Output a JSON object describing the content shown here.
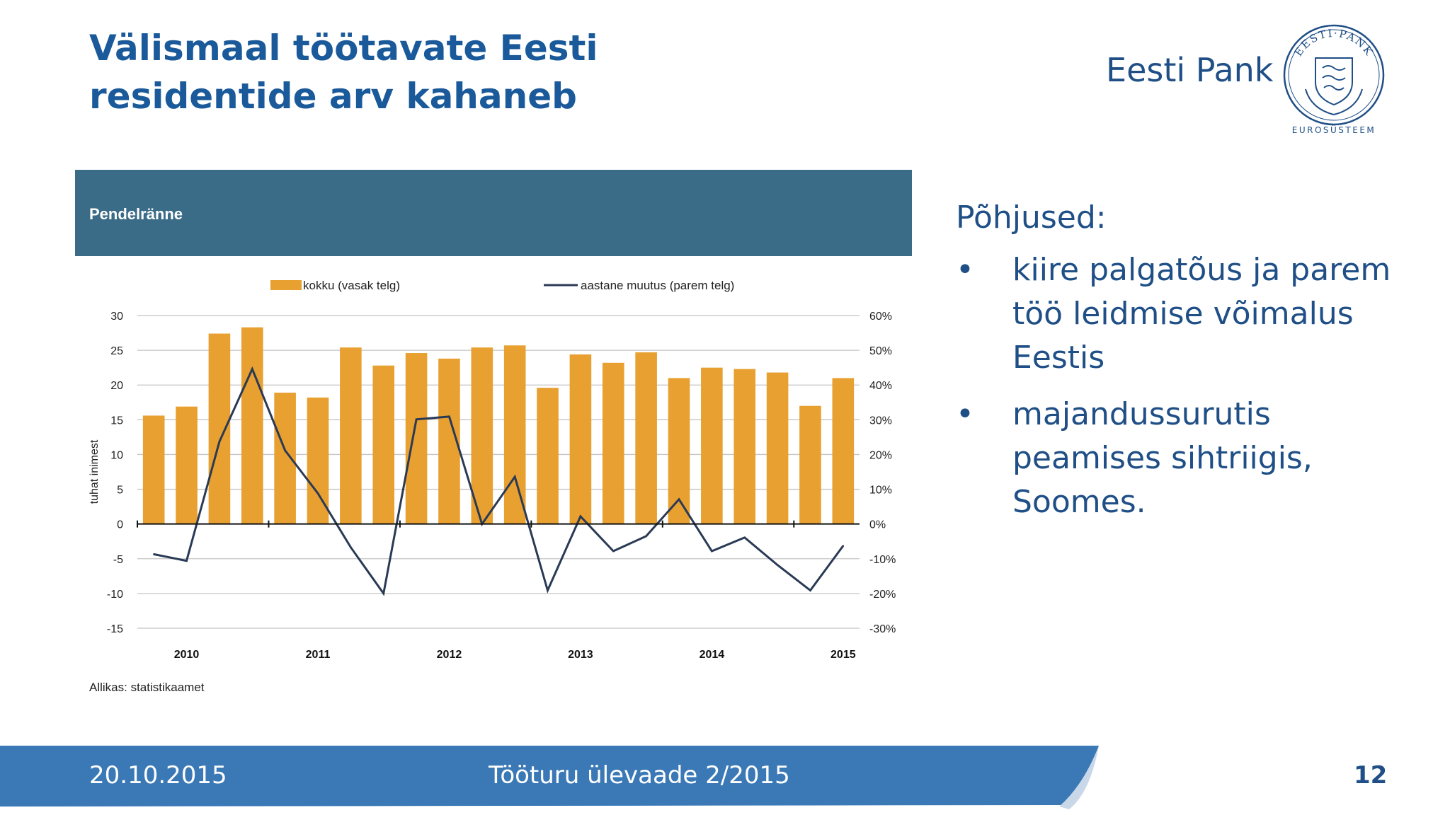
{
  "title": "Välismaal töötavate Eesti residentide arv kahaneb",
  "brand": {
    "name": "Eesti Pank",
    "logo_top_text": "EESTI·PANK",
    "logo_bottom_text": "EUROSÜSTEEM",
    "color": "#1f4f86"
  },
  "chart_panel": {
    "header": "Pendelränne",
    "source": "Allikas: statistikaamet"
  },
  "chart_data": {
    "type": "bar",
    "bar_color": "#e8a030",
    "line_color": "#2a3a55",
    "header_color": "#3a6b87",
    "legend": [
      "kokku (vasak telg)",
      "aastane muutus (parem telg)"
    ],
    "legend_placement": "top",
    "ylabel": "tuhat inimest",
    "y_left": {
      "range": [
        -15,
        30
      ],
      "ticks": [
        "30",
        "25",
        "20",
        "15",
        "10",
        "5",
        "0",
        "-5",
        "-10",
        "-15"
      ]
    },
    "y_right": {
      "range": [
        -30,
        60
      ],
      "ticks": [
        "60%",
        "50%",
        "40%",
        "30%",
        "20%",
        "10%",
        "0%",
        "-10%",
        "-20%",
        "-30%"
      ]
    },
    "x_labels": [
      "2010",
      "2011",
      "2012",
      "2013",
      "2014",
      "2015"
    ],
    "grid": true,
    "series": [
      {
        "name": "kokku (vasak telg)",
        "type": "bar",
        "axis": "left",
        "values": [
          15.6,
          16.9,
          27.4,
          28.3,
          18.9,
          18.2,
          25.4,
          22.8,
          24.6,
          23.8,
          25.4,
          25.7,
          19.6,
          24.4,
          23.2,
          24.7,
          21.0,
          22.5,
          22.3,
          21.8,
          17.0,
          21.0
        ]
      },
      {
        "name": "aastane muutus (parem telg)",
        "type": "line",
        "axis": "right",
        "values": [
          -8.7,
          -10.6,
          23.7,
          44.6,
          21.2,
          8.8,
          -6.7,
          -20.0,
          30.1,
          30.9,
          0.0,
          13.6,
          -19.1,
          2.2,
          -7.8,
          -3.5,
          7.1,
          -7.8,
          -3.9,
          -11.8,
          -19.1,
          -6.3
        ]
      }
    ]
  },
  "reasons": {
    "heading": "Põhjused:",
    "bullet": "•",
    "items": [
      "kiire palgatõus ja parem töö leidmise võimalus Eestis",
      "majandussurutis peamises sihtriigis, Soomes."
    ]
  },
  "footer": {
    "date": "20.10.2015",
    "center": "Tööturu ülevaade 2/2015",
    "page": "12",
    "band_color": "#3a78b6"
  }
}
